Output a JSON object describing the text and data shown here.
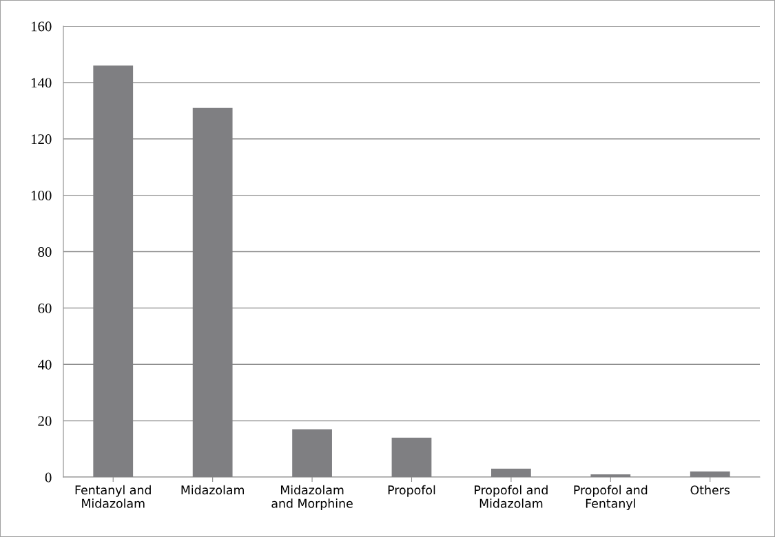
{
  "chart_data": {
    "type": "bar",
    "categories": [
      "Fentanyl and\nMidazolam",
      "Midazolam",
      "Midazolam\nand Morphine",
      "Propofol",
      "Propofol and\nMidazolam",
      "Propofol and\nFentanyl",
      "Others"
    ],
    "values": [
      146,
      131,
      17,
      14,
      3,
      1,
      2
    ],
    "color": "#7f7f82",
    "ylim": [
      0,
      160
    ],
    "yticks": [
      0,
      20,
      40,
      60,
      80,
      100,
      120,
      140,
      160
    ],
    "grid": "y"
  }
}
